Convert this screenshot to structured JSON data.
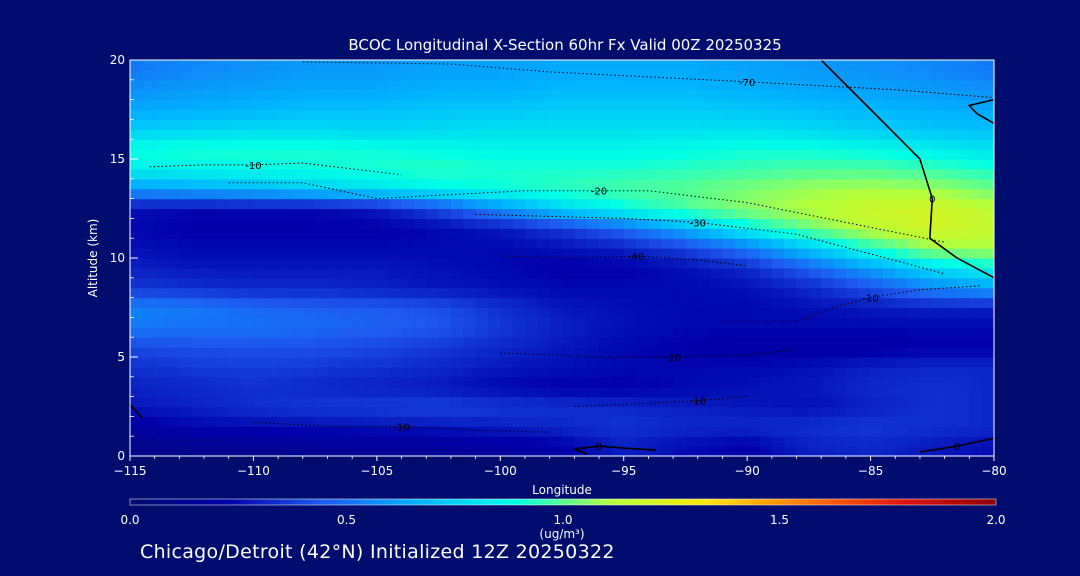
{
  "chart_data": {
    "type": "heatmap",
    "title": "BCOC Longitudinal X-Section 60hr  Fx Valid 00Z 20250325",
    "subtitle": "Chicago/Detroit (42°N) Initialized 12Z 20250322",
    "xlabel": "Longitude",
    "ylabel": "Altitude (km)",
    "xlim": [
      -115,
      -80
    ],
    "ylim": [
      0,
      20
    ],
    "x_ticks": [
      -115,
      -110,
      -105,
      -100,
      -95,
      -90,
      -85,
      -80
    ],
    "x_tick_labels": [
      "−115",
      "−110",
      "−105",
      "−100",
      "−95",
      "−90",
      "−85",
      "−80"
    ],
    "y_ticks": [
      0,
      5,
      10,
      15,
      20
    ],
    "y_tick_labels": [
      "0",
      "5",
      "10",
      "15",
      "20"
    ],
    "colorbar": {
      "min": 0.0,
      "max": 2.0,
      "ticks": [
        0.0,
        0.5,
        1.0,
        1.5,
        2.0
      ],
      "tick_labels": [
        "0.0",
        "0.5",
        "1.0",
        "1.5",
        "2.0"
      ],
      "unit_label": "(ug/m³)",
      "colors": [
        "#000c6e",
        "#0000aa",
        "#1e5af0",
        "#00b4ff",
        "#00ffe6",
        "#b4ff3c",
        "#ffe600",
        "#ff7800",
        "#e61400",
        "#8c0000"
      ]
    },
    "field": {
      "x": [
        -115,
        -112.5,
        -110,
        -107.5,
        -105,
        -102.5,
        -100,
        -97.5,
        -95,
        -92.5,
        -90,
        -87.5,
        -85,
        -82.5,
        -80
      ],
      "y": [
        0.5,
        1.5,
        2.5,
        3.5,
        4.5,
        5.5,
        6.5,
        7.5,
        8.5,
        9.5,
        10.5,
        11.5,
        12.5,
        13.5,
        14.5,
        15.5,
        16.5,
        17.5,
        18.5,
        19.5
      ],
      "values": [
        [
          0.1,
          0.12,
          0.13,
          0.14,
          0.15,
          0.16,
          0.18,
          0.22,
          0.3,
          0.25,
          0.22,
          0.3,
          0.32,
          0.28,
          0.25
        ],
        [
          0.18,
          0.24,
          0.25,
          0.26,
          0.27,
          0.28,
          0.3,
          0.32,
          0.35,
          0.32,
          0.32,
          0.34,
          0.36,
          0.34,
          0.32
        ],
        [
          0.28,
          0.3,
          0.34,
          0.36,
          0.37,
          0.38,
          0.36,
          0.34,
          0.32,
          0.3,
          0.28,
          0.26,
          0.3,
          0.34,
          0.32
        ],
        [
          0.3,
          0.32,
          0.34,
          0.32,
          0.3,
          0.28,
          0.24,
          0.22,
          0.22,
          0.24,
          0.26,
          0.28,
          0.32,
          0.34,
          0.32
        ],
        [
          0.34,
          0.36,
          0.38,
          0.36,
          0.34,
          0.32,
          0.28,
          0.26,
          0.24,
          0.24,
          0.24,
          0.26,
          0.3,
          0.32,
          0.32
        ],
        [
          0.4,
          0.42,
          0.42,
          0.42,
          0.4,
          0.36,
          0.32,
          0.28,
          0.24,
          0.22,
          0.2,
          0.2,
          0.2,
          0.22,
          0.22
        ],
        [
          0.52,
          0.5,
          0.5,
          0.48,
          0.46,
          0.44,
          0.36,
          0.3,
          0.26,
          0.24,
          0.24,
          0.24,
          0.24,
          0.24,
          0.24
        ],
        [
          0.55,
          0.52,
          0.48,
          0.46,
          0.45,
          0.42,
          0.34,
          0.28,
          0.26,
          0.24,
          0.24,
          0.26,
          0.28,
          0.3,
          0.3
        ],
        [
          0.36,
          0.34,
          0.32,
          0.32,
          0.3,
          0.28,
          0.26,
          0.24,
          0.24,
          0.24,
          0.26,
          0.32,
          0.42,
          0.55,
          0.62
        ],
        [
          0.3,
          0.28,
          0.28,
          0.28,
          0.28,
          0.26,
          0.24,
          0.22,
          0.22,
          0.26,
          0.32,
          0.46,
          0.62,
          0.78,
          0.88
        ],
        [
          0.26,
          0.24,
          0.24,
          0.24,
          0.24,
          0.24,
          0.24,
          0.26,
          0.3,
          0.38,
          0.52,
          0.72,
          0.92,
          1.08,
          1.1
        ],
        [
          0.24,
          0.22,
          0.22,
          0.22,
          0.22,
          0.24,
          0.28,
          0.36,
          0.48,
          0.66,
          0.86,
          1.02,
          1.14,
          1.2,
          1.16
        ],
        [
          0.26,
          0.24,
          0.24,
          0.24,
          0.28,
          0.4,
          0.58,
          0.76,
          0.88,
          0.98,
          1.06,
          1.12,
          1.18,
          1.2,
          1.14
        ],
        [
          0.6,
          0.64,
          0.68,
          0.74,
          0.8,
          0.86,
          0.9,
          0.94,
          0.98,
          1.0,
          1.04,
          1.08,
          1.1,
          1.08,
          1.02
        ],
        [
          0.84,
          0.86,
          0.88,
          0.9,
          0.92,
          0.94,
          0.92,
          0.92,
          0.92,
          0.94,
          0.96,
          0.98,
          0.98,
          0.96,
          0.92
        ],
        [
          0.9,
          0.92,
          0.92,
          0.92,
          0.9,
          0.88,
          0.86,
          0.86,
          0.86,
          0.88,
          0.9,
          0.9,
          0.88,
          0.84,
          0.8
        ],
        [
          0.74,
          0.76,
          0.78,
          0.78,
          0.76,
          0.78,
          0.8,
          0.8,
          0.8,
          0.8,
          0.8,
          0.78,
          0.74,
          0.72,
          0.7
        ],
        [
          0.64,
          0.66,
          0.68,
          0.7,
          0.7,
          0.72,
          0.72,
          0.74,
          0.74,
          0.74,
          0.72,
          0.7,
          0.68,
          0.66,
          0.64
        ],
        [
          0.58,
          0.6,
          0.62,
          0.64,
          0.64,
          0.66,
          0.66,
          0.68,
          0.68,
          0.68,
          0.66,
          0.64,
          0.62,
          0.6,
          0.58
        ],
        [
          0.52,
          0.56,
          0.58,
          0.6,
          0.6,
          0.62,
          0.62,
          0.64,
          0.64,
          0.64,
          0.62,
          0.6,
          0.58,
          0.56,
          0.52
        ]
      ]
    },
    "contours": [
      {
        "label": "-70",
        "solid": false,
        "points": [
          [
            -108,
            19.9
          ],
          [
            -102,
            19.8
          ],
          [
            -98,
            19.4
          ],
          [
            -90,
            18.9
          ],
          [
            -84,
            18.5
          ],
          [
            -80,
            18.1
          ]
        ]
      },
      {
        "label": "-10",
        "solid": false,
        "points": [
          [
            -114.2,
            14.6
          ],
          [
            -112,
            14.7
          ],
          [
            -110,
            14.7
          ],
          [
            -108,
            14.8
          ],
          [
            -104,
            14.2
          ]
        ]
      },
      {
        "label": "-20",
        "solid": false,
        "points": [
          [
            -111,
            13.8
          ],
          [
            -108,
            13.8
          ],
          [
            -105,
            13.0
          ],
          [
            -102,
            13.2
          ],
          [
            -99,
            13.4
          ],
          [
            -96,
            13.4
          ],
          [
            -94,
            13.4
          ],
          [
            -90,
            12.8
          ],
          [
            -86,
            11.8
          ],
          [
            -82,
            10.8
          ]
        ]
      },
      {
        "label": "-30",
        "solid": false,
        "points": [
          [
            -101,
            12.2
          ],
          [
            -98,
            12.1
          ],
          [
            -95,
            12.0
          ],
          [
            -92,
            11.8
          ],
          [
            -88,
            11.2
          ],
          [
            -85,
            10.2
          ],
          [
            -82,
            9.2
          ]
        ]
      },
      {
        "label": "-40",
        "solid": false,
        "points": [
          [
            -100,
            10.1
          ],
          [
            -97,
            10.0
          ],
          [
            -94.5,
            10.1
          ],
          [
            -92,
            9.9
          ],
          [
            -90,
            9.6
          ]
        ]
      },
      {
        "label": "-10",
        "solid": false,
        "points": [
          [
            -91,
            6.8
          ],
          [
            -88,
            6.8
          ],
          [
            -86.5,
            7.5
          ],
          [
            -85,
            8.0
          ],
          [
            -83,
            8.4
          ],
          [
            -80.5,
            8.6
          ]
        ]
      },
      {
        "label": "-20",
        "solid": false,
        "points": [
          [
            -100,
            5.2
          ],
          [
            -96,
            5.0
          ],
          [
            -93,
            5.0
          ],
          [
            -90,
            5.1
          ],
          [
            -88,
            5.4
          ]
        ]
      },
      {
        "label": "-10",
        "solid": false,
        "points": [
          [
            -97,
            2.5
          ],
          [
            -95,
            2.6
          ],
          [
            -92,
            2.8
          ],
          [
            -90,
            3.0
          ]
        ]
      },
      {
        "label": "-10",
        "solid": false,
        "points": [
          [
            -110,
            1.7
          ],
          [
            -107,
            1.5
          ],
          [
            -104,
            1.5
          ],
          [
            -101,
            1.3
          ],
          [
            -98,
            1.2
          ]
        ]
      },
      {
        "label": "0",
        "solid": true,
        "points": [
          [
            -87,
            20
          ],
          [
            -85,
            17.5
          ],
          [
            -83,
            15.0
          ],
          [
            -82.5,
            13.0
          ],
          [
            -82.6,
            11.0
          ],
          [
            -81.5,
            10.0
          ],
          [
            -80,
            9.0
          ]
        ]
      },
      {
        "label": "0",
        "solid": true,
        "points": [
          [
            -96.5,
            0.1
          ],
          [
            -97,
            0.35
          ],
          [
            -96,
            0.5
          ],
          [
            -95,
            0.4
          ],
          [
            -93.7,
            0.3
          ]
        ]
      },
      {
        "label": "0",
        "solid": true,
        "points": [
          [
            -83,
            0.2
          ],
          [
            -81.5,
            0.5
          ],
          [
            -80,
            0.9
          ]
        ]
      },
      {
        "label": "",
        "solid": true,
        "points": [
          [
            -115,
            2.6
          ],
          [
            -114.5,
            1.9
          ]
        ]
      },
      {
        "label": "",
        "solid": true,
        "points": [
          [
            -80,
            18.0
          ],
          [
            -81,
            17.7
          ],
          [
            -80.7,
            17.3
          ],
          [
            -80,
            16.8
          ]
        ]
      }
    ]
  }
}
